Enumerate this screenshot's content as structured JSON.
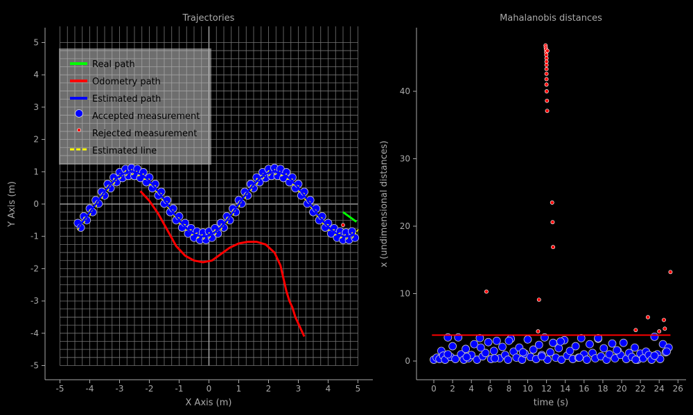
{
  "left_plot": {
    "title": "Trajectories",
    "xlabel": "X Axis (m)",
    "ylabel": "Y Axis (m)",
    "xticks": [
      "-5",
      "-4",
      "-3",
      "-2",
      "-1",
      "0",
      "1",
      "2",
      "3",
      "4",
      "5"
    ],
    "yticks": [
      "5",
      "4",
      "3",
      "2",
      "1",
      "0",
      "-1",
      "-2",
      "-3",
      "-4",
      "-5"
    ]
  },
  "right_plot": {
    "title": "Mahalanobis distances",
    "xlabel": "time (s)",
    "ylabel": "x (undimensional distances)",
    "xticks": [
      "0",
      "2",
      "4",
      "6",
      "8",
      "10",
      "12",
      "14",
      "16",
      "18",
      "20",
      "22",
      "24",
      "26"
    ],
    "yticks": [
      "40",
      "30",
      "20",
      "10",
      "0"
    ]
  },
  "legend": {
    "real": "Real path",
    "odometry": "Odometry path",
    "estimated": "Estimated path",
    "accepted": "Accepted measurement",
    "rejected": "Rejected measurement",
    "line": "Estimated line"
  },
  "colors": {
    "background": "#000000",
    "real_path": "#00ff00",
    "odometry_path": "#ff0000",
    "estimated_path": "#0000ff",
    "accepted": "#0000ff",
    "rejected": "#ff0000",
    "estimated_line": "#ffff00",
    "threshold": "#ff0000"
  },
  "chart_data": [
    {
      "type": "line",
      "title": "Trajectories",
      "xlabel": "X Axis (m)",
      "ylabel": "Y Axis (m)",
      "xlim": [
        -5.5,
        5.5
      ],
      "ylim": [
        -5.5,
        5.5
      ],
      "grid": true,
      "legend_position": "top-left",
      "series": [
        {
          "name": "Estimated path",
          "kind": "sine-wave",
          "x_range": [
            -4.4,
            4.9
          ],
          "amplitude": 1.0,
          "period": 4.8,
          "peak_x": -2.6
        },
        {
          "name": "Odometry path",
          "x": [
            -2.3,
            -2.0,
            -1.7,
            -1.4,
            -1.1,
            -0.8,
            -0.5,
            -0.2,
            0.1,
            0.4,
            0.7,
            1.0,
            1.3,
            1.6,
            1.9,
            2.2,
            2.4,
            2.5,
            2.6,
            2.7,
            2.8,
            2.9,
            3.0,
            3.1,
            3.2
          ],
          "y": [
            0.4,
            0.1,
            -0.3,
            -0.8,
            -1.3,
            -1.6,
            -1.75,
            -1.8,
            -1.75,
            -1.55,
            -1.35,
            -1.22,
            -1.17,
            -1.17,
            -1.25,
            -1.5,
            -1.9,
            -2.3,
            -2.7,
            -3.0,
            -3.2,
            -3.5,
            -3.7,
            -3.9,
            -4.1
          ]
        },
        {
          "name": "Real path",
          "x": [
            4.5,
            4.95
          ],
          "y": [
            -0.25,
            -0.55
          ]
        }
      ]
    },
    {
      "type": "scatter",
      "title": "Mahalanobis distances",
      "xlabel": "time (s)",
      "ylabel": "x (undimensional distances)",
      "xlim": [
        -1.5,
        26.5
      ],
      "ylim": [
        -2.5,
        49
      ],
      "threshold": 3.84,
      "rejected": {
        "x": [
          11.9,
          11.92,
          11.94,
          11.96,
          11.98,
          12.0,
          12.0,
          12.0,
          12.0,
          12.0,
          12.0,
          12.0,
          12.02,
          12.05,
          12.07,
          12.1,
          12.6,
          12.65,
          12.7,
          5.6,
          11.2,
          11.1,
          21.5,
          22.8,
          24.0,
          24.5,
          24.6,
          25.2
        ],
        "y": [
          46.8,
          46.5,
          46.2,
          45.8,
          45.4,
          44.9,
          44.4,
          43.9,
          43.3,
          42.6,
          41.8,
          41.0,
          40.0,
          38.6,
          37.1,
          46.0,
          23.5,
          20.6,
          16.9,
          10.3,
          9.1,
          4.4,
          4.6,
          6.5,
          4.4,
          6.1,
          4.8,
          13.2
        ]
      },
      "accepted": {
        "x": [
          0.0,
          0.3,
          0.6,
          0.8,
          1.0,
          1.2,
          1.5,
          1.8,
          2.0,
          2.3,
          2.6,
          2.9,
          3.2,
          3.4,
          3.7,
          4.0,
          4.3,
          4.6,
          4.9,
          5.2,
          5.5,
          5.8,
          6.1,
          6.4,
          6.7,
          7.0,
          7.3,
          7.6,
          7.9,
          8.2,
          8.5,
          8.8,
          9.1,
          9.4,
          9.7,
          10.0,
          10.3,
          10.6,
          10.9,
          11.2,
          11.5,
          11.8,
          12.1,
          12.4,
          12.7,
          13.0,
          13.3,
          13.6,
          13.9,
          14.2,
          14.5,
          14.8,
          15.1,
          15.4,
          15.7,
          16.0,
          16.3,
          16.6,
          16.9,
          17.2,
          17.5,
          17.8,
          18.1,
          18.4,
          18.7,
          19.0,
          19.3,
          19.6,
          19.9,
          20.2,
          20.5,
          20.8,
          21.1,
          21.4,
          21.7,
          22.0,
          22.3,
          22.6,
          22.9,
          23.2,
          23.5,
          23.8,
          24.1,
          24.4,
          24.7,
          25.0,
          1.5,
          3.5,
          5.0,
          6.5,
          8.0,
          9.5,
          11.5,
          13.5,
          15.5,
          17.5,
          19.5,
          21.5,
          23.5,
          24.8
        ],
        "y": [
          0.2,
          0.5,
          0.3,
          1.5,
          0.8,
          0.2,
          3.5,
          0.6,
          2.2,
          0.3,
          3.5,
          1.0,
          0.2,
          1.8,
          0.4,
          0.9,
          2.5,
          0.2,
          3.4,
          0.7,
          1.2,
          2.8,
          0.3,
          1.5,
          3.0,
          0.4,
          2.1,
          0.9,
          0.2,
          3.3,
          1.4,
          0.5,
          2.0,
          0.2,
          1.1,
          3.2,
          0.6,
          1.7,
          0.3,
          2.4,
          0.9,
          3.5,
          0.2,
          1.3,
          2.7,
          0.5,
          1.9,
          0.2,
          3.1,
          0.8,
          1.5,
          0.3,
          2.2,
          0.5,
          3.4,
          1.0,
          0.2,
          2.5,
          1.2,
          0.4,
          3.3,
          0.7,
          1.9,
          0.2,
          1.0,
          2.6,
          0.4,
          1.5,
          0.9,
          2.7,
          0.3,
          1.2,
          0.6,
          2.0,
          0.2,
          1.1,
          0.4,
          1.4,
          0.9,
          0.2,
          3.6,
          1.0,
          0.3,
          2.5,
          1.3,
          2.0,
          1.0,
          0.6,
          2.0,
          0.4,
          3.0,
          1.3,
          0.7,
          2.9,
          0.5,
          3.4,
          1.6,
          0.2,
          0.8,
          1.4
        ]
      }
    }
  ]
}
